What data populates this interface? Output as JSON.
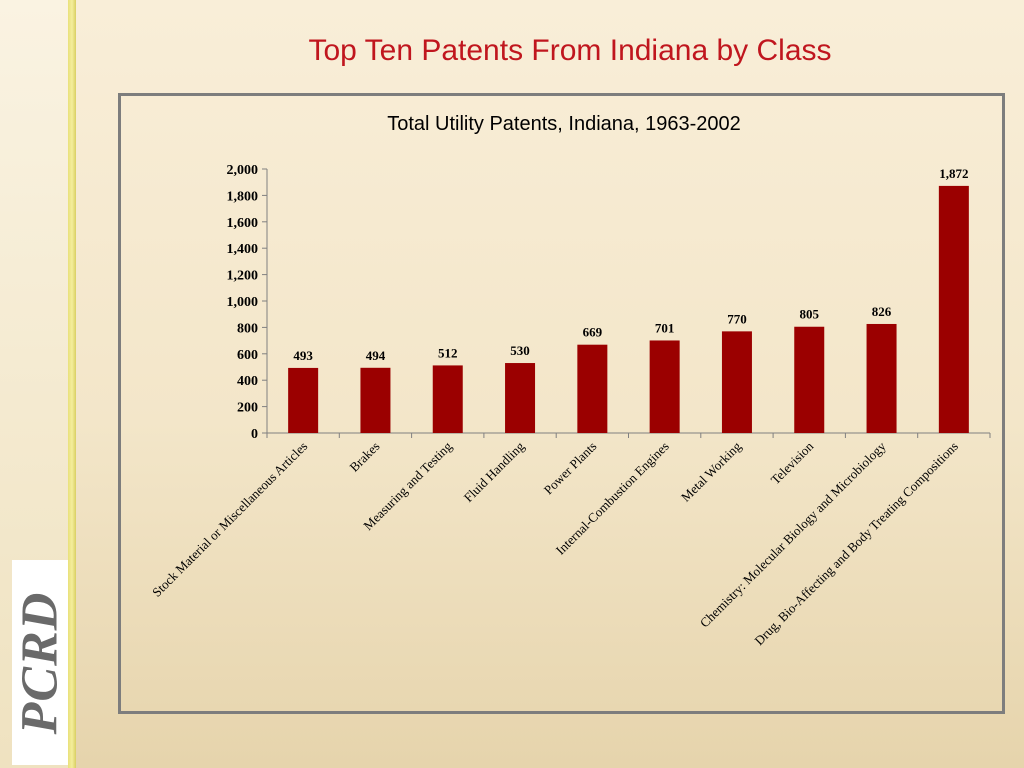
{
  "slide": {
    "title": "Top Ten Patents From Indiana by Class",
    "logo_text": "PCRD"
  },
  "colors": {
    "bar": "#9b0000",
    "title": "#c0161e",
    "axis": "#808080",
    "frame": "#7d7d7d"
  },
  "chart_data": {
    "type": "bar",
    "title": "Total Utility Patents, Indiana, 1963-2002",
    "xlabel": "",
    "ylabel": "",
    "ylim": [
      0,
      2000
    ],
    "yticks": [
      0,
      200,
      400,
      600,
      800,
      1000,
      1200,
      1400,
      1600,
      1800,
      2000
    ],
    "ytick_labels": [
      "0",
      "200",
      "400",
      "600",
      "800",
      "1,000",
      "1,200",
      "1,400",
      "1,600",
      "1,800",
      "2,000"
    ],
    "grid": false,
    "legend": "none",
    "categories": [
      "Stock Material or Miscellaneous Articles",
      "Brakes",
      "Measuring and Testing",
      "Fluid Handling",
      "Power Plants",
      "Internal-Combustion Engines",
      "Metal Working",
      "Television",
      "Chemistry: Molecular Biology and Microbiology",
      "Drug, Bio-Affecting and Body Treating Compositions"
    ],
    "values": [
      493,
      494,
      512,
      530,
      669,
      701,
      770,
      805,
      826,
      1872
    ],
    "value_labels": [
      "493",
      "494",
      "512",
      "530",
      "669",
      "701",
      "770",
      "805",
      "826",
      "1,872"
    ]
  }
}
